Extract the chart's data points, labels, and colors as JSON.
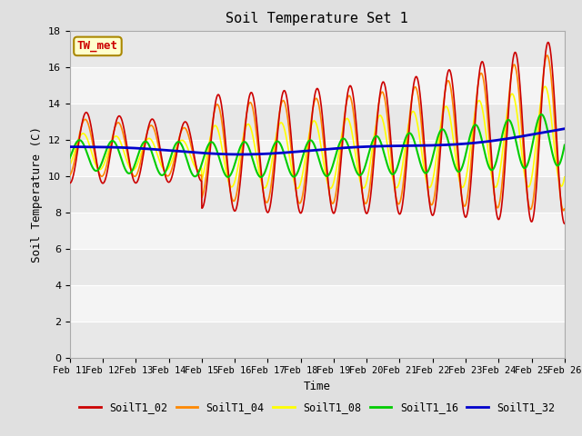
{
  "title": "Soil Temperature Set 1",
  "xlabel": "Time",
  "ylabel": "Soil Temperature (C)",
  "annotation": "TW_met",
  "ylim": [
    0,
    18
  ],
  "yticks": [
    0,
    2,
    4,
    6,
    8,
    10,
    12,
    14,
    16,
    18
  ],
  "x_tick_labels": [
    "Feb 11",
    "Feb 12",
    "Feb 13",
    "Feb 14",
    "Feb 15",
    "Feb 16",
    "Feb 17",
    "Feb 18",
    "Feb 19",
    "Feb 20",
    "Feb 21",
    "Feb 22",
    "Feb 23",
    "Feb 24",
    "Feb 25",
    "Feb 26"
  ],
  "colors": {
    "SoilT1_02": "#cc0000",
    "SoilT1_04": "#ff8800",
    "SoilT1_08": "#ffff00",
    "SoilT1_16": "#00cc00",
    "SoilT1_32": "#0000cc"
  },
  "bg_color": "#e0e0e0",
  "plot_bg": "#f0f0f0",
  "grid_color": "#ffffff",
  "annotation_box_color": "#ffffcc",
  "annotation_border_color": "#aa8800",
  "annotation_text_color": "#cc0000",
  "linewidth_thin": 1.2,
  "linewidth_green": 1.5,
  "linewidth_blue": 2.0
}
